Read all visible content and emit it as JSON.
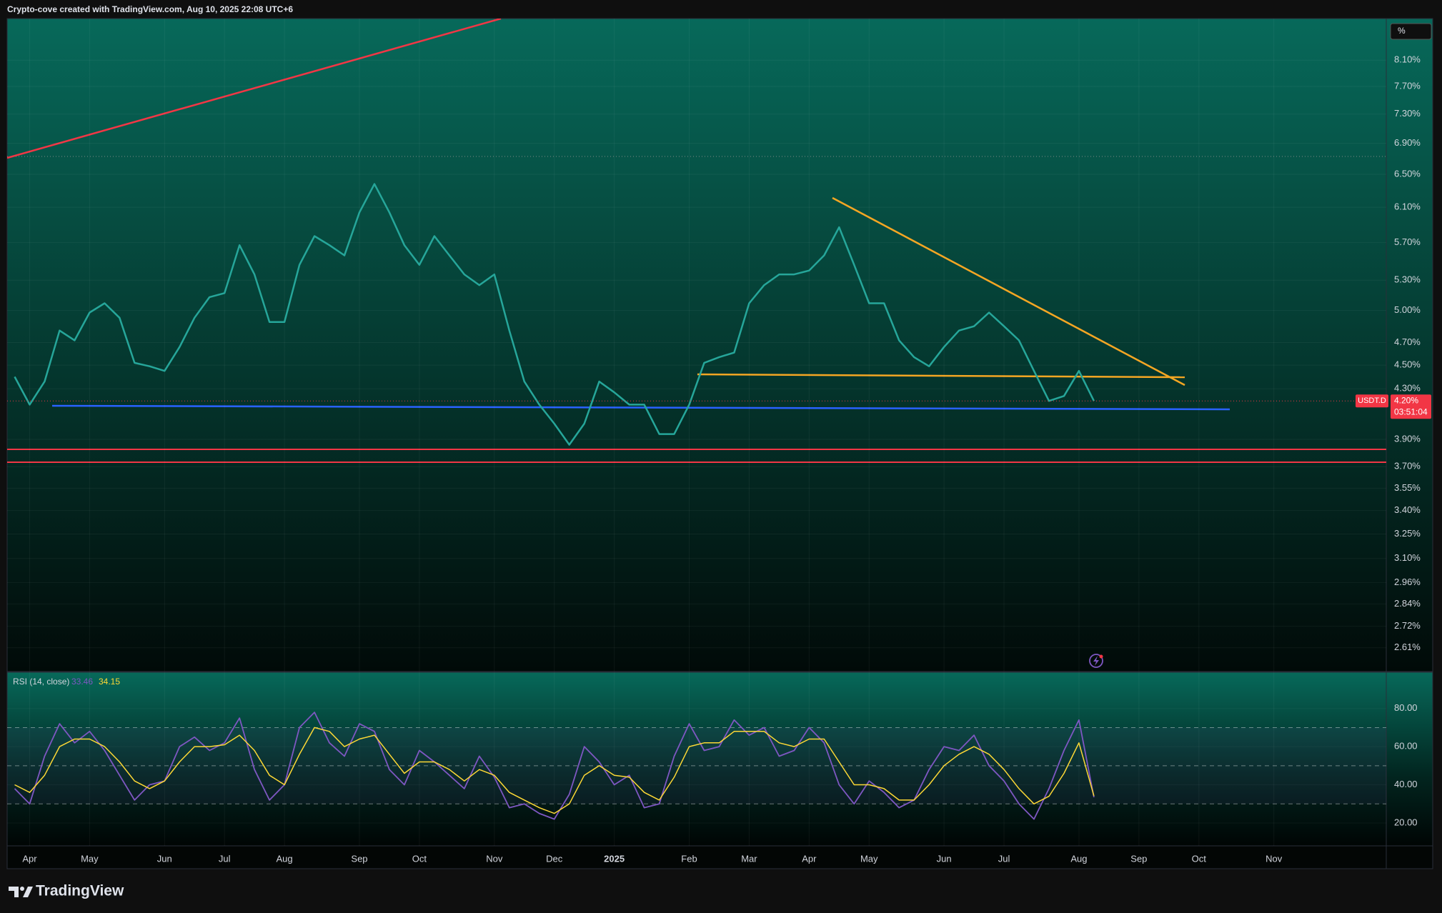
{
  "header": {
    "text": "Crypto-cove created with TradingView.com, Aug 10, 2025 22:08 UTC+6"
  },
  "footer": {
    "brand": "TradingView"
  },
  "chart_data": [
    {
      "type": "line",
      "symbol": "USDT.D",
      "axis_unit": "%",
      "countdown": "03:51:04",
      "last_price": {
        "value": 4.2,
        "label": "4.20%"
      },
      "log": true,
      "grid": true,
      "categories": [
        null,
        "Apr",
        null,
        null,
        null,
        "May",
        null,
        null,
        null,
        null,
        "Jun",
        null,
        null,
        null,
        "Jul",
        null,
        null,
        null,
        "Aug",
        null,
        null,
        null,
        null,
        "Sep",
        null,
        null,
        null,
        "Oct",
        null,
        null,
        null,
        null,
        "Nov",
        null,
        null,
        null,
        "Dec",
        null,
        null,
        null,
        "2025",
        null,
        null,
        null,
        null,
        "Feb",
        null,
        null,
        null,
        "Mar",
        null,
        null,
        null,
        "Apr",
        null,
        null,
        null,
        "May",
        null,
        null,
        null,
        null,
        "Jun",
        null,
        null,
        null,
        "Jul",
        null,
        null,
        null,
        null,
        "Aug",
        null,
        null,
        null,
        "Sep",
        null,
        null,
        null,
        "Oct",
        null,
        null,
        null,
        null,
        "Nov",
        null,
        null,
        null,
        null,
        null,
        null,
        null
      ],
      "series": [
        {
          "color": "#26a69a",
          "values": [
            4.4,
            4.17,
            4.36,
            4.81,
            4.72,
            4.98,
            5.07,
            4.93,
            4.52,
            4.49,
            4.45,
            4.66,
            4.93,
            5.13,
            5.17,
            5.67,
            5.36,
            4.89,
            4.89,
            5.46,
            5.77,
            5.67,
            5.56,
            6.04,
            6.38,
            6.04,
            5.67,
            5.46,
            5.77,
            5.56,
            5.36,
            5.25,
            5.36,
            4.81,
            4.36,
            4.17,
            4.02,
            3.86,
            4.02,
            4.36,
            4.27,
            4.17,
            4.17,
            3.94,
            3.94,
            4.17,
            4.52,
            4.57,
            4.61,
            5.07,
            5.25,
            5.36,
            5.36,
            5.4,
            5.56,
            5.87,
            5.46,
            5.07,
            5.07,
            4.72,
            4.57,
            4.49,
            4.66,
            4.81,
            4.85,
            4.98,
            4.85,
            4.72,
            4.45,
            4.2,
            4.24,
            4.45,
            4.2,
            null,
            null,
            null,
            null,
            null,
            null,
            null,
            null,
            null,
            null,
            null,
            null,
            null,
            null,
            null,
            null,
            null,
            null,
            null
          ]
        }
      ],
      "ylim": [
        2.5,
        8.8
      ],
      "yticks": [
        {
          "value": 8.1,
          "label": "8.10%"
        },
        {
          "value": 7.7,
          "label": "7.70%"
        },
        {
          "value": 7.3,
          "label": "7.30%"
        },
        {
          "value": 6.9,
          "label": "6.90%"
        },
        {
          "value": 6.5,
          "label": "6.50%"
        },
        {
          "value": 6.1,
          "label": "6.10%"
        },
        {
          "value": 5.7,
          "label": "5.70%"
        },
        {
          "value": 5.3,
          "label": "5.30%"
        },
        {
          "value": 5.0,
          "label": "5.00%"
        },
        {
          "value": 4.7,
          "label": "4.70%"
        },
        {
          "value": 4.5,
          "label": "4.50%"
        },
        {
          "value": 4.3,
          "label": "4.30%"
        },
        {
          "value": 3.9,
          "label": "3.90%"
        },
        {
          "value": 3.7,
          "label": "3.70%"
        },
        {
          "value": 3.55,
          "label": "3.55%"
        },
        {
          "value": 3.4,
          "label": "3.40%"
        },
        {
          "value": 3.25,
          "label": "3.25%"
        },
        {
          "value": 3.1,
          "label": "3.10%"
        },
        {
          "value": 2.96,
          "label": "2.96%"
        },
        {
          "value": 2.84,
          "label": "2.84%"
        },
        {
          "value": 2.72,
          "label": "2.72%"
        },
        {
          "value": 2.61,
          "label": "2.61%"
        }
      ]
    },
    {
      "type": "line",
      "title": "RSI (14, close)",
      "series": [
        {
          "color": "#7e57c2",
          "values": [
            38,
            30,
            55,
            72,
            62,
            68,
            58,
            45,
            32,
            40,
            42,
            60,
            65,
            58,
            62,
            75,
            48,
            32,
            40,
            70,
            78,
            62,
            55,
            72,
            68,
            48,
            40,
            58,
            52,
            45,
            38,
            55,
            44,
            28,
            30,
            25,
            22,
            35,
            60,
            52,
            40,
            45,
            28,
            30,
            55,
            72,
            58,
            60,
            74,
            66,
            70,
            55,
            58,
            70,
            62,
            40,
            30,
            42,
            36,
            28,
            32,
            48,
            60,
            58,
            66,
            50,
            42,
            30,
            22,
            38,
            58,
            74,
            33.46,
            null,
            null,
            null,
            null,
            null,
            null,
            null,
            null,
            null,
            null,
            null,
            null,
            null,
            null,
            null,
            null,
            null,
            null,
            null
          ]
        },
        {
          "color": "#fdd835",
          "values": [
            40,
            36,
            45,
            60,
            64,
            64,
            60,
            52,
            42,
            38,
            42,
            52,
            60,
            60,
            61,
            66,
            58,
            45,
            40,
            56,
            70,
            68,
            60,
            64,
            66,
            56,
            46,
            52,
            52,
            48,
            42,
            48,
            45,
            36,
            32,
            28,
            25,
            30,
            45,
            50,
            45,
            44,
            36,
            32,
            44,
            60,
            62,
            62,
            68,
            68,
            68,
            62,
            60,
            64,
            64,
            52,
            40,
            40,
            38,
            32,
            32,
            40,
            50,
            56,
            60,
            56,
            48,
            38,
            30,
            34,
            46,
            62,
            34.15,
            null,
            null,
            null,
            null,
            null,
            null,
            null,
            null,
            null,
            null,
            null,
            null,
            null,
            null,
            null,
            null,
            null,
            null,
            null
          ]
        }
      ],
      "levels": [
        70,
        50,
        30
      ],
      "ylim": [
        8,
        99
      ],
      "yticks": [
        {
          "value": 80,
          "label": "80.00"
        },
        {
          "value": 60,
          "label": "60.00"
        },
        {
          "value": 40,
          "label": "40.00"
        },
        {
          "value": 20,
          "label": "20.00"
        }
      ]
    }
  ]
}
